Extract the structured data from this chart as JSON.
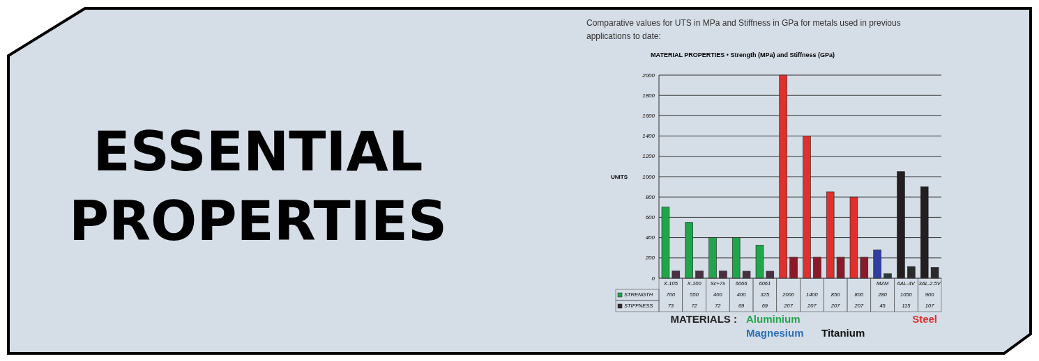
{
  "chart_data": {
    "type": "bar",
    "title": "ESSENTIAL PROPERTIES",
    "subtitle": "MATERIAL PROPERTIES • Strength (MPa) and Stiffness (GPa)",
    "ylabel": "UNITS",
    "annotations": [
      "Comparative values for UTS in MPa and Stiffness in GPa for metals used in previous applications to date:",
      "MATERIALS :",
      "Aluminium",
      "Magnesium",
      "Titanium",
      "Steel"
    ],
    "categories": [
      "X-105",
      "X-100",
      "Sc+7x",
      "6066",
      "6061",
      null,
      null,
      null,
      null,
      "MZM",
      "6AL-4V",
      "3AL-2.5V"
    ],
    "series": [
      {
        "name": "STRENGTH",
        "color": "#1fa64a",
        "colors": [
          "#1fa64a",
          "#1fa64a",
          "#1fa64a",
          "#1fa64a",
          "#1fa64a",
          "#e0302e",
          "#e0302e",
          "#e0302e",
          "#e0302e",
          "#2e3fa0",
          "#231f20",
          "#231f20"
        ],
        "values": [
          700,
          550,
          400,
          400,
          325,
          2000,
          1400,
          850,
          800,
          280,
          1050,
          900
        ]
      },
      {
        "name": "STIFFNESS",
        "color": "#3a2a30",
        "colors": [
          "#4a3040",
          "#4a3040",
          "#4a3040",
          "#4a3040",
          "#4a3040",
          "#8a1a2a",
          "#8a1a2a",
          "#8a1a2a",
          "#8a1a2a",
          "#2a3a40",
          "#2a2a2a",
          "#2a2a2a"
        ],
        "values": [
          73,
          72,
          72,
          69,
          69,
          207,
          207,
          207,
          207,
          45,
          115,
          107
        ]
      }
    ],
    "ylim": [
      0,
      2000
    ],
    "yticks": [
      0,
      200,
      400,
      600,
      800,
      1000,
      1200,
      1400,
      1600,
      1800,
      2000
    ],
    "grid": true,
    "data_labels": true,
    "legend": "bottom left"
  }
}
